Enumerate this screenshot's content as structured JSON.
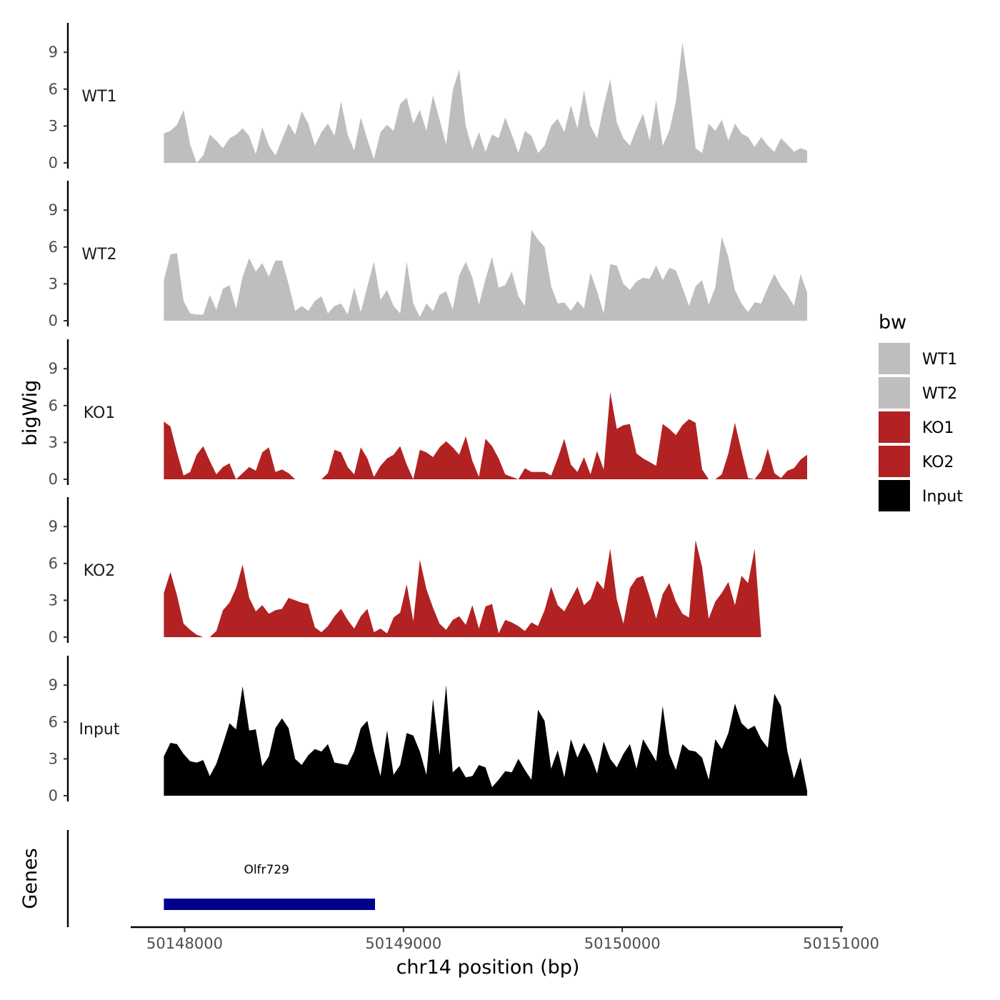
{
  "chart_data": {
    "type": "area",
    "x_axis": {
      "label": "chr14 position (bp)",
      "ticks": [
        50148000,
        50149000,
        50150000,
        50151000
      ],
      "tick_labels": [
        "50148000",
        "50149000",
        "50150000",
        "50151000"
      ],
      "range": [
        50147750,
        50151000
      ]
    },
    "y_axis": {
      "label": "bigWig",
      "ticks": [
        0,
        3,
        6,
        9
      ],
      "tick_labels": [
        "0",
        "3",
        "6",
        "9"
      ],
      "range": [
        0,
        11.6
      ]
    },
    "x": [
      50147905,
      50147935,
      50147965,
      50147995,
      50148025,
      50148055,
      50148085,
      50148115,
      50148145,
      50148175,
      50148205,
      50148235,
      50148265,
      50148295,
      50148325,
      50148355,
      50148385,
      50148415,
      50148445,
      50148475,
      50148505,
      50148535,
      50148565,
      50148595,
      50148625,
      50148655,
      50148685,
      50148715,
      50148745,
      50148775,
      50148805,
      50148835,
      50148865,
      50148895,
      50148925,
      50148955,
      50148985,
      50149015,
      50149045,
      50149075,
      50149105,
      50149135,
      50149165,
      50149195,
      50149225,
      50149255,
      50149285,
      50149315,
      50149345,
      50149375,
      50149405,
      50149435,
      50149465,
      50149495,
      50149525,
      50149555,
      50149585,
      50149615,
      50149645,
      50149675,
      50149705,
      50149735,
      50149765,
      50149795,
      50149825,
      50149855,
      50149885,
      50149915,
      50149945,
      50149975,
      50150005,
      50150035,
      50150065,
      50150095,
      50150125,
      50150155,
      50150185,
      50150215,
      50150245,
      50150275,
      50150305,
      50150335,
      50150365,
      50150395,
      50150425,
      50150455,
      50150485,
      50150515,
      50150545,
      50150575,
      50150605,
      50150635,
      50150665,
      50150695,
      50150725,
      50150755,
      50150785,
      50150815,
      50150845
    ],
    "series": [
      {
        "name": "WT1",
        "color": "#bebebe",
        "values": [
          2.4,
          2.6,
          3.1,
          4.3,
          1.5,
          0,
          0.6,
          2.3,
          1.8,
          1.2,
          2.0,
          2.3,
          2.8,
          2.2,
          0.7,
          2.9,
          1.4,
          0.6,
          1.9,
          3.2,
          2.3,
          4.2,
          3.2,
          1.4,
          2.5,
          3.2,
          2.2,
          5.0,
          2.3,
          1.0,
          3.7,
          1.9,
          0.3,
          2.5,
          3.1,
          2.6,
          4.8,
          5.3,
          3.2,
          4.3,
          2.6,
          5.5,
          3.5,
          1.5,
          5.9,
          7.6,
          3.0,
          1.1,
          2.5,
          0.9,
          2.3,
          2.0,
          3.7,
          2.3,
          0.8,
          2.6,
          2.2,
          0.8,
          1.4,
          3.0,
          3.6,
          2.5,
          4.7,
          2.8,
          5.9,
          3.0,
          2.0,
          4.6,
          6.8,
          3.3,
          2.0,
          1.4,
          2.8,
          4.0,
          1.8,
          5.1,
          1.4,
          2.6,
          5.0,
          9.8,
          6.0,
          1.2,
          0.8,
          3.2,
          2.6,
          3.5,
          1.8,
          3.2,
          2.4,
          2.1,
          1.3,
          2.1,
          1.4,
          0.9,
          2.0,
          1.5,
          0.9,
          1.2,
          1.0
        ]
      },
      {
        "name": "WT2",
        "color": "#bebebe",
        "values": [
          3.3,
          5.4,
          5.5,
          1.6,
          0.6,
          0.5,
          0.5,
          2.1,
          0.9,
          2.6,
          2.9,
          1.0,
          3.6,
          5.1,
          4.0,
          4.7,
          3.6,
          4.9,
          4.9,
          3.0,
          0.8,
          1.2,
          0.8,
          1.6,
          2.0,
          0.6,
          1.2,
          1.4,
          0.5,
          2.7,
          0.7,
          2.8,
          4.8,
          1.7,
          2.5,
          1.2,
          0.6,
          4.8,
          1.4,
          0.3,
          1.4,
          0.8,
          2.1,
          2.4,
          0.9,
          3.7,
          4.8,
          3.5,
          1.3,
          3.4,
          5.2,
          2.7,
          2.9,
          4.0,
          2.0,
          1.2,
          7.4,
          6.6,
          6.0,
          2.8,
          1.4,
          1.5,
          0.8,
          1.6,
          1.0,
          3.9,
          2.4,
          0.6,
          4.6,
          4.5,
          3.0,
          2.5,
          3.2,
          3.5,
          3.4,
          4.5,
          3.3,
          4.3,
          4.1,
          2.7,
          1.2,
          2.8,
          3.3,
          1.3,
          2.7,
          6.8,
          5.2,
          2.5,
          1.4,
          0.7,
          1.5,
          1.4,
          2.7,
          3.8,
          2.8,
          2.1,
          1.2,
          3.8,
          2.3
        ]
      },
      {
        "name": "KO1",
        "color": "#b22222",
        "values": [
          4.7,
          4.3,
          2.2,
          0.3,
          0.6,
          2.0,
          2.7,
          1.5,
          0.4,
          1.0,
          1.3,
          0,
          0.5,
          1.0,
          0.7,
          2.2,
          2.6,
          0.6,
          0.8,
          0.5,
          0,
          0,
          0,
          0,
          0,
          0.5,
          2.4,
          2.2,
          1.0,
          0.4,
          2.6,
          1.7,
          0.2,
          1.1,
          1.7,
          2.0,
          2.7,
          1.2,
          0,
          2.4,
          2.2,
          1.8,
          2.6,
          3.1,
          2.6,
          2.0,
          3.5,
          1.5,
          0.2,
          3.3,
          2.7,
          1.7,
          0.4,
          0.2,
          0,
          0.9,
          0.6,
          0.6,
          0.6,
          0.3,
          1.7,
          3.3,
          1.2,
          0.6,
          1.8,
          0.4,
          2.3,
          0.8,
          7.1,
          4.1,
          4.4,
          4.5,
          2.1,
          1.7,
          1.4,
          1.1,
          4.5,
          4.1,
          3.6,
          4.4,
          4.9,
          4.6,
          0.8,
          0,
          0,
          0.4,
          2.1,
          4.6,
          2.3,
          0.1,
          0,
          0.7,
          2.5,
          0.5,
          0.1,
          0.7,
          0.9,
          1.6,
          2.0
        ]
      },
      {
        "name": "KO2",
        "color": "#b22222",
        "values": [
          3.6,
          5.3,
          3.4,
          1.1,
          0.6,
          0.2,
          0,
          0,
          0.5,
          2.2,
          2.8,
          4.0,
          5.9,
          3.2,
          2.1,
          2.6,
          1.9,
          2.2,
          2.3,
          3.2,
          3.0,
          2.8,
          2.7,
          0.8,
          0.4,
          0.9,
          1.7,
          2.3,
          1.4,
          0.7,
          1.7,
          2.3,
          0.4,
          0.7,
          0.3,
          1.6,
          2.0,
          4.3,
          1.3,
          6.3,
          3.9,
          2.4,
          1.1,
          0.6,
          1.4,
          1.7,
          1.0,
          2.6,
          0.7,
          2.5,
          2.7,
          0.3,
          1.4,
          1.2,
          0.9,
          0.5,
          1.2,
          0.9,
          2.2,
          4.1,
          2.6,
          2.1,
          3.1,
          4.1,
          2.6,
          3.1,
          4.6,
          3.9,
          7.2,
          3.1,
          1.1,
          4.0,
          4.8,
          5.0,
          3.3,
          1.5,
          3.5,
          4.4,
          2.9,
          1.9,
          1.6,
          7.9,
          5.7,
          1.5,
          2.9,
          3.6,
          4.5,
          2.6,
          5.0,
          4.4,
          7.2,
          0,
          0,
          0,
          0,
          0,
          0,
          0,
          0
        ]
      },
      {
        "name": "Input",
        "color": "#000000",
        "values": [
          3.2,
          4.3,
          4.2,
          3.4,
          2.8,
          2.7,
          2.9,
          1.6,
          2.6,
          4.2,
          5.9,
          5.4,
          8.9,
          5.3,
          5.4,
          2.4,
          3.2,
          5.5,
          6.3,
          5.5,
          3.0,
          2.5,
          3.3,
          3.8,
          3.6,
          4.2,
          2.7,
          2.6,
          2.5,
          3.6,
          5.5,
          6.1,
          3.6,
          1.6,
          5.3,
          1.7,
          2.5,
          5.1,
          4.9,
          3.6,
          1.7,
          7.9,
          3.3,
          9.0,
          1.9,
          2.4,
          1.5,
          1.6,
          2.5,
          2.3,
          0.7,
          1.3,
          2.0,
          1.9,
          3.0,
          2.1,
          1.3,
          7.0,
          6.1,
          2.2,
          3.7,
          1.5,
          4.6,
          3.1,
          4.3,
          3.3,
          1.8,
          4.4,
          3.0,
          2.3,
          3.4,
          4.2,
          2.2,
          4.6,
          3.7,
          2.8,
          7.3,
          3.4,
          2.1,
          4.2,
          3.7,
          3.6,
          3.1,
          1.3,
          4.6,
          3.8,
          5.1,
          7.5,
          5.9,
          5.4,
          5.7,
          4.6,
          3.9,
          8.3,
          7.3,
          3.6,
          1.4,
          3.1,
          0.4
        ]
      }
    ],
    "genes": {
      "label": "Genes",
      "items": [
        {
          "name": "Olfr729",
          "start": 50147905,
          "end": 50148870,
          "color": "#00008b"
        }
      ]
    },
    "legend": {
      "title": "bw",
      "position": "right",
      "entries": [
        {
          "label": "WT1",
          "color": "#bebebe"
        },
        {
          "label": "WT2",
          "color": "#bebebe"
        },
        {
          "label": "KO1",
          "color": "#b22222"
        },
        {
          "label": "KO2",
          "color": "#b22222"
        },
        {
          "label": "Input",
          "color": "#000000"
        }
      ]
    },
    "grid": false
  }
}
